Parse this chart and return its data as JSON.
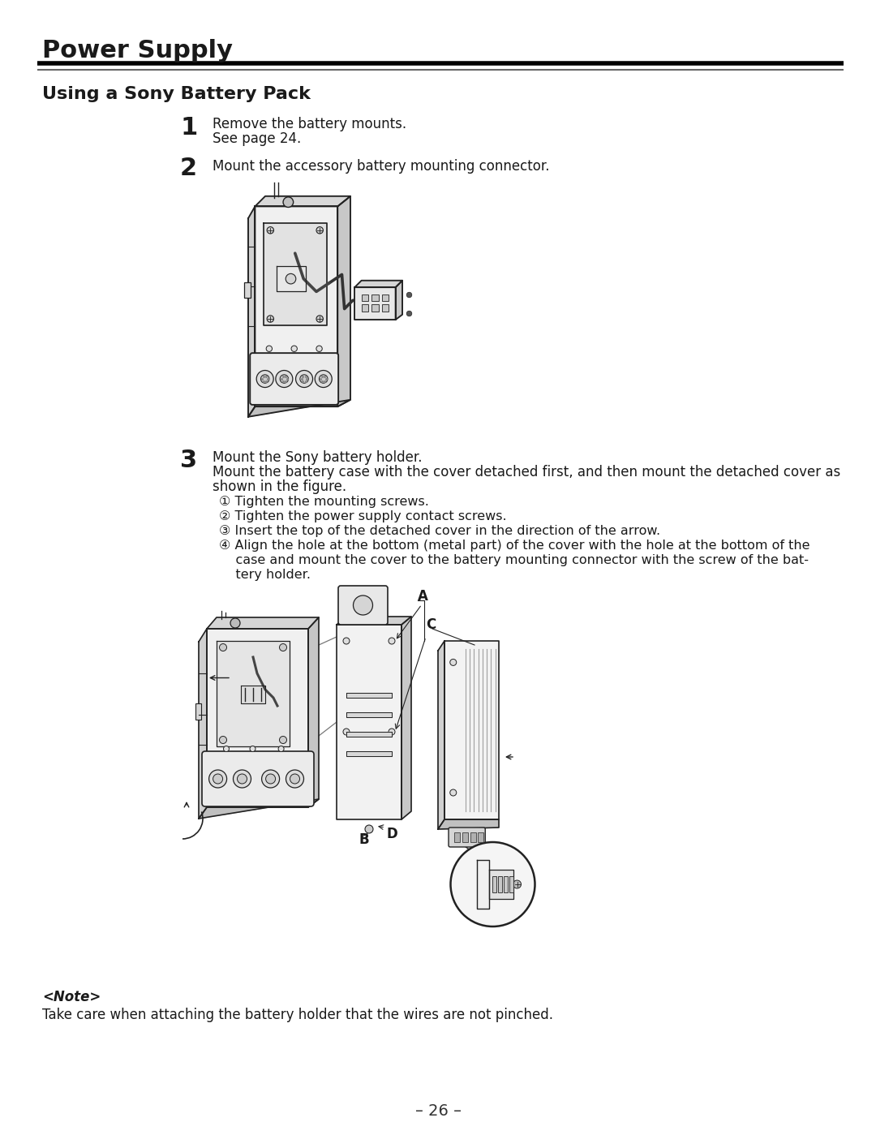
{
  "bg_color": "#ffffff",
  "text_color": "#1a1a1a",
  "title": "Power Supply",
  "subtitle": "Using a Sony Battery Pack",
  "step1_num": "1",
  "step1_line1": "Remove the battery mounts.",
  "step1_line2": "See page 24.",
  "step2_num": "2",
  "step2_text": "Mount the accessory battery mounting connector.",
  "step3_num": "3",
  "step3_line1": "Mount the Sony battery holder.",
  "step3_line2": "Mount the battery case with the cover detached first, and then mount the detached cover as",
  "step3_line3": "shown in the figure.",
  "step3_sub1": "① Tighten the mounting screws.",
  "step3_sub2": "② Tighten the power supply contact screws.",
  "step3_sub3": "③ Insert the top of the detached cover in the direction of the arrow.",
  "step3_sub4_line1": "④ Align the hole at the bottom (metal part) of the cover with the hole at the bottom of the",
  "step3_sub4_line2": "    case and mount the cover to the battery mounting connector with the screw of the bat-",
  "step3_sub4_line3": "    tery holder.",
  "note_header": "<Note>",
  "note_text": "Take care when attaching the battery holder that the wires are not pinched.",
  "page_num": "– 26 –",
  "lc": "#222222",
  "fc_light": "#f5f5f5",
  "fc_mid": "#e0e0e0",
  "fc_dark": "#cccccc"
}
